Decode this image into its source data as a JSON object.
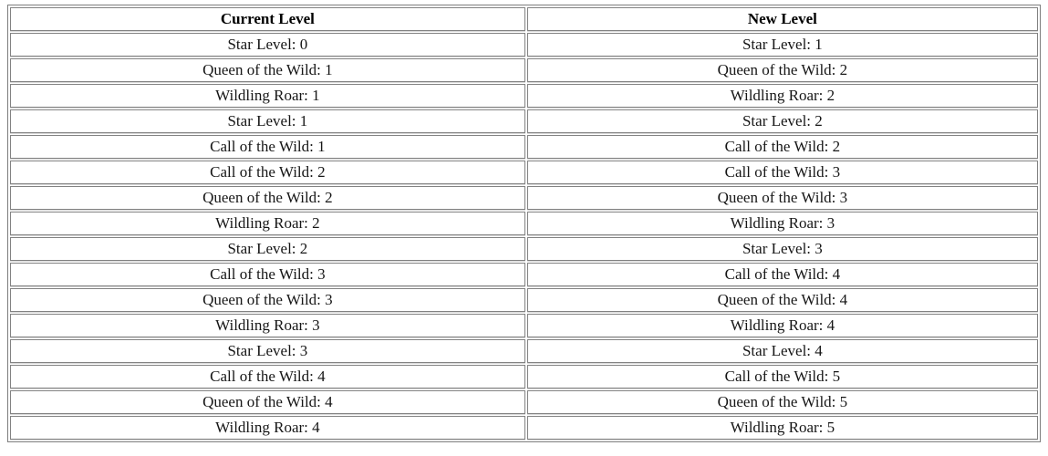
{
  "colors": {
    "page_background": "#ffffff",
    "table_border": "#7d7d7d",
    "cell_border": "#828282",
    "text": "#161616"
  },
  "table": {
    "columns": [
      "Current Level",
      "New Level"
    ],
    "rows": [
      [
        "Star Level: 0",
        "Star Level: 1"
      ],
      [
        "Queen of the Wild: 1",
        "Queen of the Wild: 2"
      ],
      [
        "Wildling Roar: 1",
        "Wildling Roar: 2"
      ],
      [
        "Star Level: 1",
        "Star Level: 2"
      ],
      [
        "Call of the Wild: 1",
        "Call of the Wild: 2"
      ],
      [
        "Call of the Wild: 2",
        "Call of the Wild: 3"
      ],
      [
        "Queen of the Wild: 2",
        "Queen of the Wild: 3"
      ],
      [
        "Wildling Roar: 2",
        "Wildling Roar: 3"
      ],
      [
        "Star Level: 2",
        "Star Level: 3"
      ],
      [
        "Call of the Wild: 3",
        "Call of the Wild: 4"
      ],
      [
        "Queen of the Wild: 3",
        "Queen of the Wild: 4"
      ],
      [
        "Wildling Roar: 3",
        "Wildling Roar: 4"
      ],
      [
        "Star Level: 3",
        "Star Level: 4"
      ],
      [
        "Call of the Wild: 4",
        "Call of the Wild: 5"
      ],
      [
        "Queen of the Wild: 4",
        "Queen of the Wild: 5"
      ],
      [
        "Wildling Roar: 4",
        "Wildling Roar: 5"
      ]
    ]
  }
}
